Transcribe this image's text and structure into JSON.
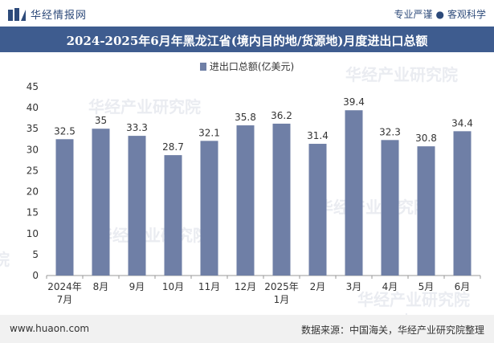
{
  "header": {
    "brand_name": "华经情报网",
    "tagline_left": "专业严谨",
    "tagline_right": "客观科学"
  },
  "footer": {
    "site": "www.huaon.com",
    "source": "数据来源：中国海关，华经产业研究院整理"
  },
  "watermarks": [
    "华经产业研究院",
    "华经产业研究院",
    "华经产业研究院",
    "华经产业研究院",
    "华经产业研究院",
    "www.huaon.com",
    "院"
  ],
  "colors": {
    "bar": "#6f7fa6",
    "title_bg": "#3e5c8f"
  },
  "chart_data": {
    "type": "bar",
    "title": "2024-2025年6月年黑龙江省(境内目的地/货源地)月度进出口总额",
    "legend": "进出口总额(亿美元)",
    "categories": [
      [
        "2024年",
        "7月"
      ],
      [
        "8月"
      ],
      [
        "9月"
      ],
      [
        "10月"
      ],
      [
        "11月"
      ],
      [
        "12月"
      ],
      [
        "2025年",
        "1月"
      ],
      [
        "2月"
      ],
      [
        "3月"
      ],
      [
        "4月"
      ],
      [
        "5月"
      ],
      [
        "6月"
      ]
    ],
    "values": [
      32.5,
      35,
      33.3,
      28.7,
      32.1,
      35.8,
      36.2,
      31.4,
      39.4,
      32.3,
      30.8,
      34.4
    ],
    "value_labels": [
      "32.5",
      "35",
      "33.3",
      "28.7",
      "32.1",
      "35.8",
      "36.2",
      "31.4",
      "39.4",
      "32.3",
      "30.8",
      "34.4"
    ],
    "ylim": [
      0,
      45
    ],
    "yticks": [
      0,
      5,
      10,
      15,
      20,
      25,
      30,
      35,
      40,
      45
    ],
    "xlabel": "",
    "ylabel": ""
  }
}
